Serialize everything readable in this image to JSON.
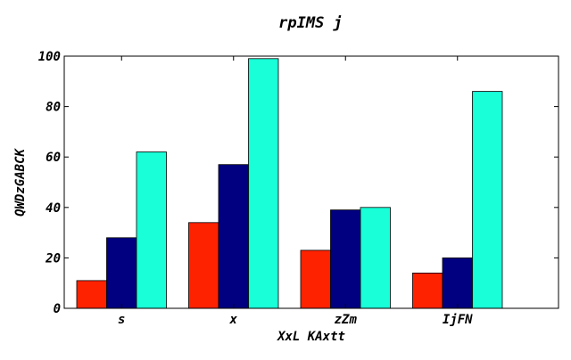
{
  "chart_data": {
    "type": "bar",
    "title": "rpIMS j",
    "xlabel": "XxL KAxtt",
    "ylabel": "QWDzGABCK",
    "categories": [
      "s",
      "x",
      "zZm",
      "IjFN"
    ],
    "series": [
      {
        "values": [
          11,
          34,
          23,
          14
        ],
        "color": "#ff2200"
      },
      {
        "values": [
          28,
          57,
          39,
          20
        ],
        "color": "#000080"
      },
      {
        "values": [
          62,
          99,
          40,
          86
        ],
        "color": "#19ffd8"
      }
    ],
    "ylim": [
      0,
      100
    ],
    "yticks": [
      0,
      20,
      40,
      60,
      80,
      100
    ],
    "grid": false,
    "legend": false
  }
}
